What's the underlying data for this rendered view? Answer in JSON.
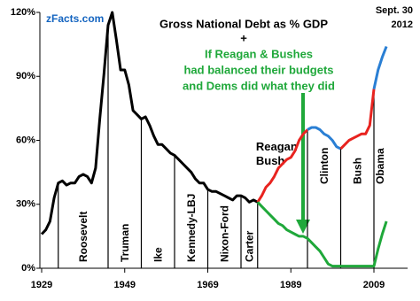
{
  "chart_data": {
    "type": "line",
    "title": "Gross National Debt  as % GDP",
    "subtitle": "+",
    "annotations": [
      "If Reagan & Bushes",
      "had balanced their budgets",
      "and Dems did what they did"
    ],
    "source": "zFacts.com",
    "date_note": [
      "Sept. 30",
      "2012"
    ],
    "xlim": [
      1929,
      2017
    ],
    "xticks": [
      1929,
      1949,
      1969,
      1989,
      2009
    ],
    "ylim": [
      0,
      120
    ],
    "yticks": [
      {
        "value": 0,
        "label": "0%"
      },
      {
        "value": 30,
        "label": "30%"
      },
      {
        "value": 60,
        "label": "60%"
      },
      {
        "value": 90,
        "label": "90%"
      },
      {
        "value": 120,
        "label": "120%"
      }
    ],
    "eras": [
      {
        "label": "Roosevelt",
        "start": 1933,
        "end": 1945
      },
      {
        "label": "Truman",
        "start": 1945,
        "end": 1953
      },
      {
        "label": "Ike",
        "start": 1953,
        "end": 1961
      },
      {
        "label": "Kennedy-LBJ",
        "start": 1961,
        "end": 1969
      },
      {
        "label": "Nixon-Ford",
        "start": 1969,
        "end": 1977
      },
      {
        "label": "Carter",
        "start": 1977,
        "end": 1981
      },
      {
        "label": "Reagan Bush",
        "start": 1981,
        "end": 1993
      },
      {
        "label": "Clinton",
        "start": 1993,
        "end": 2001
      },
      {
        "label": "Bush",
        "start": 2001,
        "end": 2009
      },
      {
        "label": "Obama",
        "start": 2009,
        "end": 2012
      }
    ],
    "series": [
      {
        "color": "#000000",
        "x": [
          1929,
          1930,
          1931,
          1932,
          1933,
          1934,
          1935,
          1936,
          1937,
          1938,
          1939,
          1940,
          1941,
          1942,
          1943,
          1944,
          1945,
          1946,
          1947,
          1948,
          1949,
          1950,
          1951,
          1952,
          1953,
          1954,
          1955,
          1956,
          1957,
          1958,
          1959,
          1960,
          1961,
          1962,
          1963,
          1964,
          1965,
          1966,
          1967,
          1968,
          1969,
          1970,
          1971,
          1972,
          1973,
          1974,
          1975,
          1976,
          1977,
          1978,
          1979,
          1980,
          1981
        ],
        "values": [
          16,
          18,
          22,
          33,
          40,
          41,
          39,
          40,
          40,
          43,
          44,
          43,
          40,
          47,
          70,
          91,
          114,
          120,
          107,
          93,
          93,
          86,
          74,
          72,
          70,
          71,
          67,
          62,
          58,
          58,
          56,
          54,
          53,
          51,
          49,
          47,
          45,
          42,
          40,
          40,
          37,
          36,
          36,
          35,
          34,
          33,
          32,
          34,
          34,
          33,
          31,
          32,
          31
        ]
      },
      {
        "color": "#e8231f",
        "x": [
          1981,
          1982,
          1983,
          1984,
          1985,
          1986,
          1987,
          1988,
          1989,
          1990,
          1991,
          1992,
          1993
        ],
        "values": [
          31,
          34,
          38,
          40,
          43,
          47,
          49,
          51,
          52,
          55,
          60,
          63,
          65
        ]
      },
      {
        "color": "#2a7fd4",
        "x": [
          1993,
          1994,
          1995,
          1996,
          1997,
          1998,
          1999,
          2000,
          2001
        ],
        "values": [
          65,
          66,
          66,
          65,
          63,
          62,
          60,
          57,
          56
        ]
      },
      {
        "color": "#e8231f",
        "x": [
          2001,
          2002,
          2003,
          2004,
          2005,
          2006,
          2007,
          2008,
          2009
        ],
        "values": [
          56,
          58,
          60,
          61,
          62,
          63,
          63,
          67,
          84
        ]
      },
      {
        "color": "#2a7fd4",
        "x": [
          2009,
          2010,
          2011,
          2012
        ],
        "values": [
          84,
          93,
          99,
          104
        ]
      },
      {
        "color": "#1fa83a",
        "x": [
          1981,
          1982,
          1983,
          1984,
          1985,
          1986,
          1987,
          1988,
          1989,
          1990,
          1991,
          1992,
          1993,
          1994,
          1995,
          1996,
          1997,
          1998,
          1999,
          2000,
          2001,
          2002,
          2003,
          2004,
          2005,
          2006,
          2007,
          2008,
          2009,
          2010,
          2011,
          2012
        ],
        "values": [
          31,
          29,
          27,
          25,
          23,
          21,
          20,
          18,
          17,
          16,
          15,
          15,
          14,
          12,
          10,
          8,
          5,
          2,
          1,
          1,
          1,
          1,
          1,
          1,
          1,
          1,
          1,
          1,
          1,
          9,
          16,
          22
        ]
      }
    ]
  }
}
